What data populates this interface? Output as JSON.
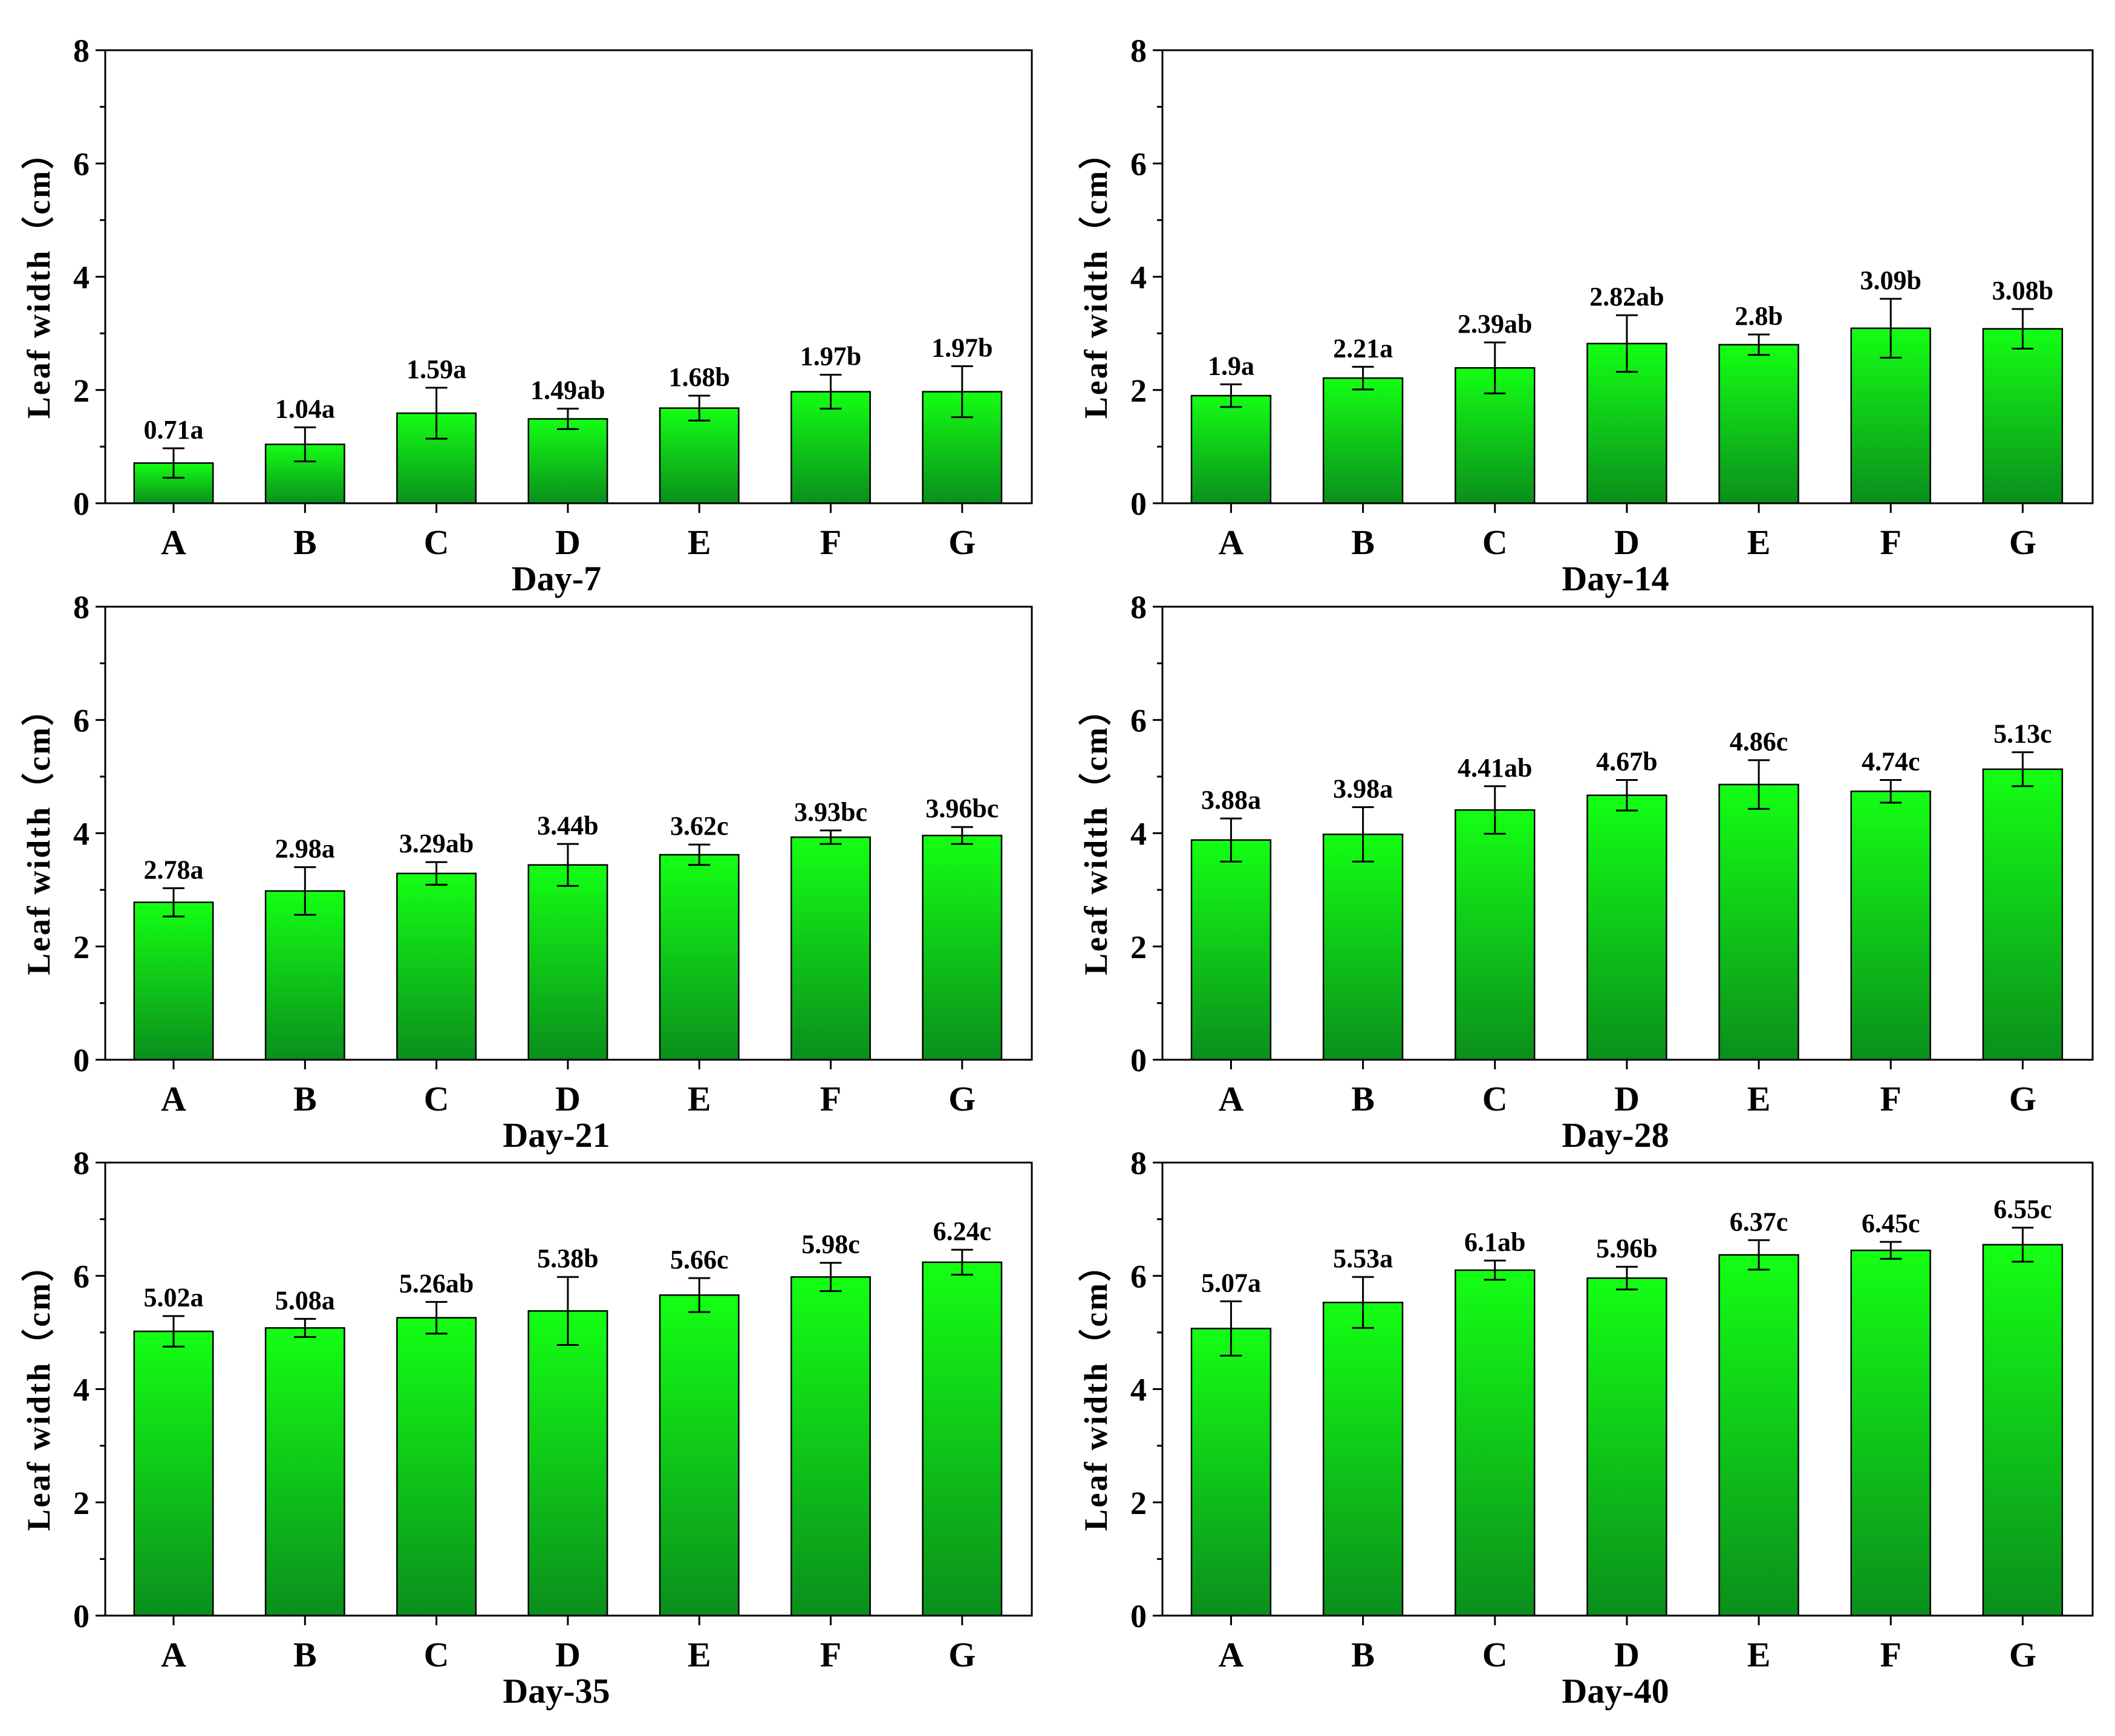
{
  "figure": {
    "bar_color_top": "#14ff14",
    "bar_color_bottom": "#0a8f1c"
  },
  "chart_data": [
    {
      "type": "bar",
      "title": "Day-7",
      "ylabel": "Leaf width（cm）",
      "ylim": [
        0,
        8
      ],
      "yticks": [
        0,
        2,
        4,
        6,
        8
      ],
      "categories": [
        "A",
        "B",
        "C",
        "D",
        "E",
        "F",
        "G"
      ],
      "values": [
        0.71,
        1.04,
        1.59,
        1.49,
        1.68,
        1.97,
        1.97
      ],
      "errors": [
        0.26,
        0.3,
        0.45,
        0.18,
        0.22,
        0.3,
        0.45
      ],
      "labels": [
        "0.71a",
        "1.04a",
        "1.59a",
        "1.49ab",
        "1.68b",
        "1.97b",
        "1.97b"
      ]
    },
    {
      "type": "bar",
      "title": "Day-14",
      "ylabel": "Leaf width（cm）",
      "ylim": [
        0,
        8
      ],
      "yticks": [
        0,
        2,
        4,
        6,
        8
      ],
      "categories": [
        "A",
        "B",
        "C",
        "D",
        "E",
        "F",
        "G"
      ],
      "values": [
        1.9,
        2.21,
        2.39,
        2.82,
        2.8,
        3.09,
        3.08
      ],
      "errors": [
        0.2,
        0.2,
        0.45,
        0.5,
        0.18,
        0.52,
        0.35
      ],
      "labels": [
        "1.9a",
        "2.21a",
        "2.39ab",
        "2.82ab",
        "2.8b",
        "3.09b",
        "3.08b"
      ]
    },
    {
      "type": "bar",
      "title": "Day-21",
      "ylabel": "Leaf width（cm）",
      "ylim": [
        0,
        8
      ],
      "yticks": [
        0,
        2,
        4,
        6,
        8
      ],
      "categories": [
        "A",
        "B",
        "C",
        "D",
        "E",
        "F",
        "G"
      ],
      "values": [
        2.78,
        2.98,
        3.29,
        3.44,
        3.62,
        3.93,
        3.96
      ],
      "errors": [
        0.25,
        0.42,
        0.2,
        0.37,
        0.18,
        0.12,
        0.15
      ],
      "labels": [
        "2.78a",
        "2.98a",
        "3.29ab",
        "3.44b",
        "3.62c",
        "3.93bc",
        "3.96bc"
      ]
    },
    {
      "type": "bar",
      "title": "Day-28",
      "ylabel": "Leaf width（cm）",
      "ylim": [
        0,
        8
      ],
      "yticks": [
        0,
        2,
        4,
        6,
        8
      ],
      "categories": [
        "A",
        "B",
        "C",
        "D",
        "E",
        "F",
        "G"
      ],
      "values": [
        3.88,
        3.98,
        4.41,
        4.67,
        4.86,
        4.74,
        5.13
      ],
      "errors": [
        0.38,
        0.48,
        0.42,
        0.27,
        0.43,
        0.2,
        0.3
      ],
      "labels": [
        "3.88a",
        "3.98a",
        "4.41ab",
        "4.67b",
        "4.86c",
        "4.74c",
        "5.13c"
      ]
    },
    {
      "type": "bar",
      "title": "Day-35",
      "ylabel": "Leaf width（cm）",
      "ylim": [
        0,
        8
      ],
      "yticks": [
        0,
        2,
        4,
        6,
        8
      ],
      "categories": [
        "A",
        "B",
        "C",
        "D",
        "E",
        "F",
        "G"
      ],
      "values": [
        5.02,
        5.08,
        5.26,
        5.38,
        5.66,
        5.98,
        6.24
      ],
      "errors": [
        0.27,
        0.16,
        0.28,
        0.6,
        0.3,
        0.25,
        0.22
      ],
      "labels": [
        "5.02a",
        "5.08a",
        "5.26ab",
        "5.38b",
        "5.66c",
        "5.98c",
        "6.24c"
      ]
    },
    {
      "type": "bar",
      "title": "Day-40",
      "ylabel": "Leaf width（cm）",
      "ylim": [
        0,
        8
      ],
      "yticks": [
        0,
        2,
        4,
        6,
        8
      ],
      "categories": [
        "A",
        "B",
        "C",
        "D",
        "E",
        "F",
        "G"
      ],
      "values": [
        5.07,
        5.53,
        6.1,
        5.96,
        6.37,
        6.45,
        6.55
      ],
      "errors": [
        0.48,
        0.45,
        0.17,
        0.2,
        0.26,
        0.15,
        0.3
      ],
      "labels": [
        "5.07a",
        "5.53a",
        "6.1ab",
        "5.96b",
        "6.37c",
        "6.45c",
        "6.55c"
      ]
    }
  ]
}
